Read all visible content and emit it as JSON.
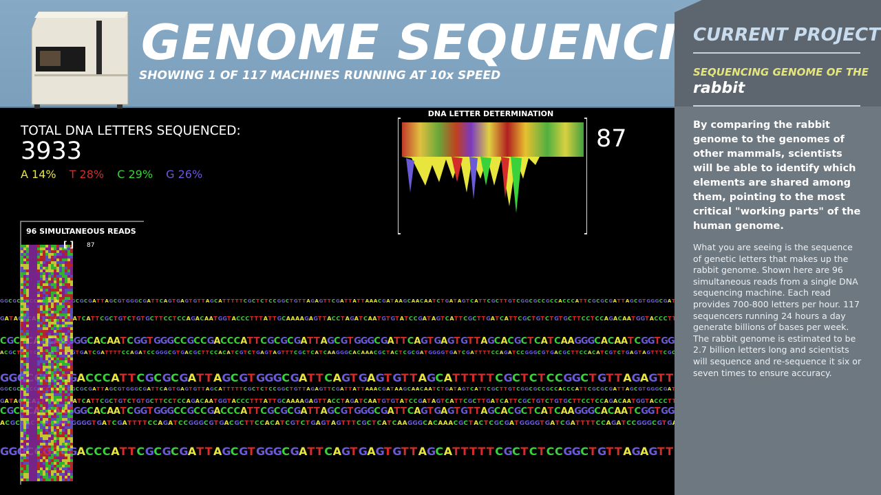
{
  "header": {
    "title": "GENOME SEQUENCING",
    "subtitle": "SHOWING 1 OF 117 MACHINES RUNNING AT 10x SPEED"
  },
  "stats": {
    "total_label": "TOTAL DNA LETTERS SEQUENCED:",
    "total_value": "3933",
    "percentages": [
      {
        "letter": "A",
        "text": "A 14%",
        "color": "#e8e63c"
      },
      {
        "letter": "T",
        "text": "T 28%",
        "color": "#d42b2b"
      },
      {
        "letter": "C",
        "text": "C 29%",
        "color": "#3ad23a"
      },
      {
        "letter": "G",
        "text": "G 26%",
        "color": "#6a5ad8"
      }
    ]
  },
  "determination": {
    "label": "DNA LETTER DETERMINATION",
    "value": "87"
  },
  "reads": {
    "label": "96 SIMULTANEOUS READS",
    "cursor": "[ ]",
    "position": "87"
  },
  "side": {
    "heading": "CURRENT PROJECT",
    "project_prefix": "SEQUENCING GENOME OF THE",
    "organism": "rabbit",
    "lead": "By comparing the rabbit genome to the genomes of other mammals, scientists will be able to identify which elements are shared among them, pointing to the most critical \"working parts\" of the human genome.",
    "body": "What you are seeing is the sequence of genetic letters that makes up the rabbit genome. Shown here are 96 simultaneous reads from a single DNA sequencing machine. Each read provides 700-800 letters per hour. 117 sequencers running 24 hours a day generate billions of bases per week. The rabbit genome is estimated to be 2.7 billion letters long and scientists will sequence and re-sequence it six or seven times to ensure accuracy."
  },
  "sequence_rows": [
    "GGCGCCGCCACCCATTCGCGCGATTAGCGTGGGCGATTCAGTGAGTGTTAGCATTTTTCGCTCTCCGGCTGTTAGAGTTCGATTATTAAACGATAAGCAACAATCTGATAGTCATTCGCTTGTC",
    "GATAGTCATTCGCTTGATCATTCGCTGTCTGTGCTTCCTCCAGACAATGGTACCCTTTATTGCAAAAGAGTTACCTAGATCAATGTGTATCC",
    "CGCTCATCAAGGGCACAATCGGTGGGCCGCCGACCCATTCGCGCGATTAGCGTGGGCGATTCAGTGAGTGTTAGCA",
    "ACGCTACTCGCGATGGGGTGATCGATTTTCCAGATCCGGGCGTGACGCTTCCACATCGTCTGAGTAGTTTCGCTCATCAAGGGCACAA",
    "GGGCCGCCGACCCATTCGCGCGATTAGCGTGGGCGATTCAGTGAGTGTTAGCATTTTTCGCTCTCCGGCTGTTAGAGTTCGA"
  ],
  "colors": {
    "A": "#e8e63c",
    "T": "#d42b2b",
    "C": "#3ad23a",
    "G": "#6a5ad8",
    "header_bg": "#86a9c5",
    "side_bg": "#6e7881"
  }
}
